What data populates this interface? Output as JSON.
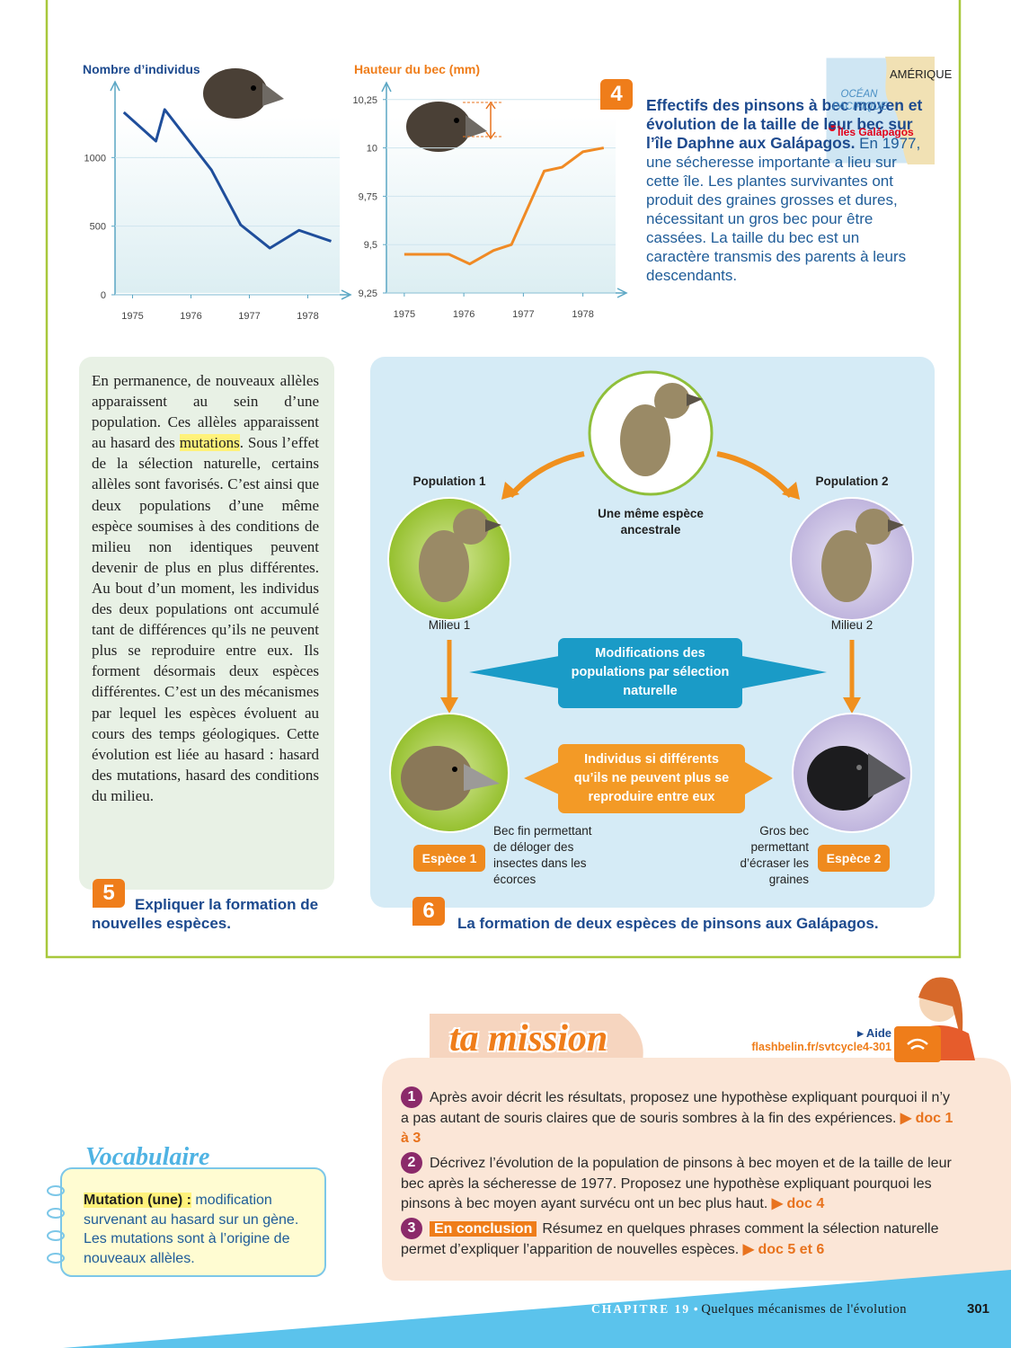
{
  "chart_data": [
    {
      "type": "line",
      "y_label": "Nombre d’individus",
      "color": "#1f4e9b",
      "x": [
        1974.85,
        1975.4,
        1975.55,
        1976.35,
        1976.85,
        1977.35,
        1977.85,
        1978.4
      ],
      "values": [
        1330,
        1120,
        1350,
        910,
        510,
        340,
        470,
        390
      ],
      "xlim": [
        1974.7,
        1978.7
      ],
      "xticks": [
        1975,
        1976,
        1977,
        1978
      ],
      "ylim": [
        0,
        1500
      ],
      "yticks": [
        0,
        500,
        1000
      ]
    },
    {
      "type": "line",
      "y_label": "Hauteur du bec (mm)",
      "color": "#f08a24",
      "x": [
        1975.0,
        1975.75,
        1976.1,
        1976.5,
        1976.8,
        1977.35,
        1977.65,
        1978.0,
        1978.35
      ],
      "values": [
        9.45,
        9.45,
        9.4,
        9.47,
        9.5,
        9.88,
        9.9,
        9.98,
        10.0
      ],
      "xlim": [
        1974.7,
        1978.7
      ],
      "xticks": [
        1975,
        1976,
        1977,
        1978
      ],
      "ylim": [
        9.25,
        10.3
      ],
      "yticks": [
        {
          "value": 9.25,
          "label": "9,25"
        },
        {
          "value": 9.5,
          "label": "9,5"
        },
        {
          "value": 9.75,
          "label": "9,75"
        },
        10,
        {
          "value": 10.25,
          "label": "10,25"
        }
      ]
    }
  ],
  "doc4": {
    "number": "4",
    "title": "Effectifs des pinsons à bec moyen et évolution de la taille de leur bec sur l’île Daphne aux Galápagos.",
    "text": "En 1977, une sécheresse importante a lieu sur cette île. Les plantes survivantes ont produit des graines grosses et dures, nécessitant un gros bec pour être cassées. La taille du bec est un caractère transmis des parents à leurs descendants.",
    "map": {
      "continent": "AMÉRIQUE",
      "ocean": "OCÉAN PACIFIQUE",
      "islands": "Îles Galápagos"
    }
  },
  "doc5": {
    "text_before": "En permanence, de nouveaux allèles apparaissent au sein d’une population. Ces allèles apparaissent au hasard des",
    "highlight": "mutations",
    "text_after": ". Sous l’effet de la sélection naturelle, certains allèles sont favorisés. C’est ainsi que deux populations d’une même espèce soumises à des conditions de milieu non identiques peuvent devenir de plus en plus différentes. Au bout d’un moment, les individus des deux populations ont accumulé tant de différences qu’ils ne peuvent plus se reproduire entre eux. Ils forment désormais deux espèces différentes. C’est un des mécanismes par lequel les espèces évoluent au cours des temps géologiques. Cette évolution est liée au hasard : hasard des mutations, hasard des conditions du milieu.",
    "number": "5",
    "title": "Expliquer la formation de nouvelles espèces."
  },
  "doc6": {
    "number": "6",
    "title": "La formation de deux espèces de pinsons aux Galápagos.",
    "ancestor": "Une même espèce ancestrale",
    "population_1": "Population 1",
    "population_2": "Population 2",
    "milieu_1": "Milieu 1",
    "milieu_2": "Milieu 2",
    "selection": "Modifications des populations par sélection naturelle",
    "isolation": "Individus si différents qu’ils ne peuvent plus se reproduire entre eux",
    "species_1": "Espèce 1",
    "species_2": "Espèce 2",
    "beak_1": "Bec fin permettant de déloger des insectes dans les écorces",
    "beak_2": "Gros bec permettant d’écraser les graines"
  },
  "mission": {
    "title": "ta mission",
    "help": "▸ Aide",
    "link": "flashbelin.fr/svtcycle4-301",
    "items": [
      {
        "number": "1",
        "text": "Après avoir décrit les résultats, proposez une hypothèse expliquant pourquoi il n’y a pas autant de souris claires que de souris sombres à la fin des expériences.",
        "ref": "▶ doc 1 à 3"
      },
      {
        "number": "2",
        "text": "Décrivez l’évolution de la population de pinsons à bec moyen et de la taille de leur bec après la sécheresse de 1977. Proposez une hypothèse expliquant pourquoi les pinsons à bec moyen ayant survécu ont un bec plus haut.",
        "ref": "▶ doc 4"
      },
      {
        "number": "3",
        "tag": "En conclusion",
        "text": "Résumez en quelques phrases comment la sélection naturelle permet d’expliquer l’apparition de nouvelles espèces.",
        "ref": "▶ doc 5 et 6"
      }
    ]
  },
  "vocabulary": {
    "title": "Vocabulaire",
    "term": "Mutation (une) :",
    "definition": "modification survenant au hasard sur un gène. Les mutations sont à l’origine de nouveaux allèles."
  },
  "footer": {
    "chapter": "CHAPITRE 19",
    "separator": "•",
    "chapter_title": "Quelques mécanismes de l'évolution",
    "page": "301"
  }
}
